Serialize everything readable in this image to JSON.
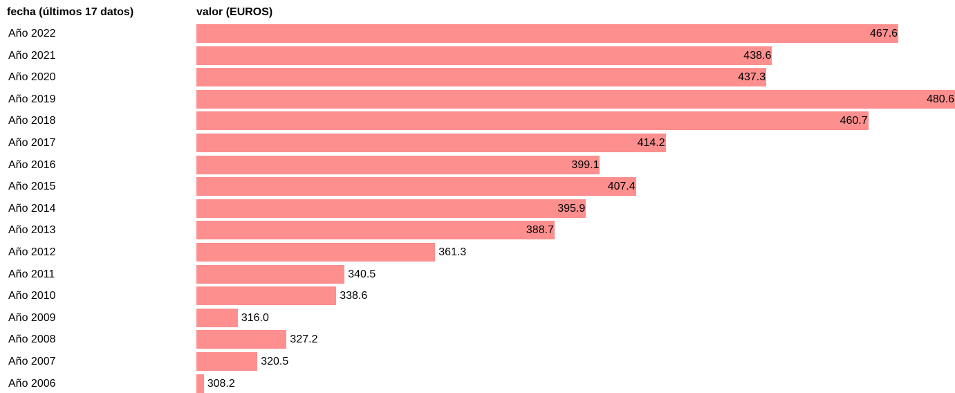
{
  "header": {
    "date_column": "fecha (últimos 17 datos)",
    "value_column": "valor (EUROS)"
  },
  "colors": {
    "bar": "#fd8f8f"
  },
  "chart_data": {
    "type": "bar",
    "orientation": "horizontal",
    "categories": [
      "Año 2022",
      "Año 2021",
      "Año 2020",
      "Año 2019",
      "Año 2018",
      "Año 2017",
      "Año 2016",
      "Año 2015",
      "Año 2014",
      "Año 2013",
      "Año 2012",
      "Año 2011",
      "Año 2010",
      "Año 2009",
      "Año 2008",
      "Año 2007",
      "Año 2006"
    ],
    "values": [
      467.6,
      438.6,
      437.3,
      480.6,
      460.7,
      414.2,
      399.1,
      407.4,
      395.9,
      388.7,
      361.3,
      340.5,
      338.6,
      316.0,
      327.2,
      320.5,
      308.2
    ],
    "value_labels": [
      "467.6",
      "438.6",
      "437.3",
      "480.6",
      "460.7",
      "414.2",
      "399.1",
      "407.4",
      "395.9",
      "388.7",
      "361.3",
      "340.5",
      "338.6",
      "316.0",
      "327.2",
      "320.5",
      "308.2"
    ],
    "xlim": [
      306.5,
      480.6
    ],
    "grid": false,
    "legend": "none"
  }
}
